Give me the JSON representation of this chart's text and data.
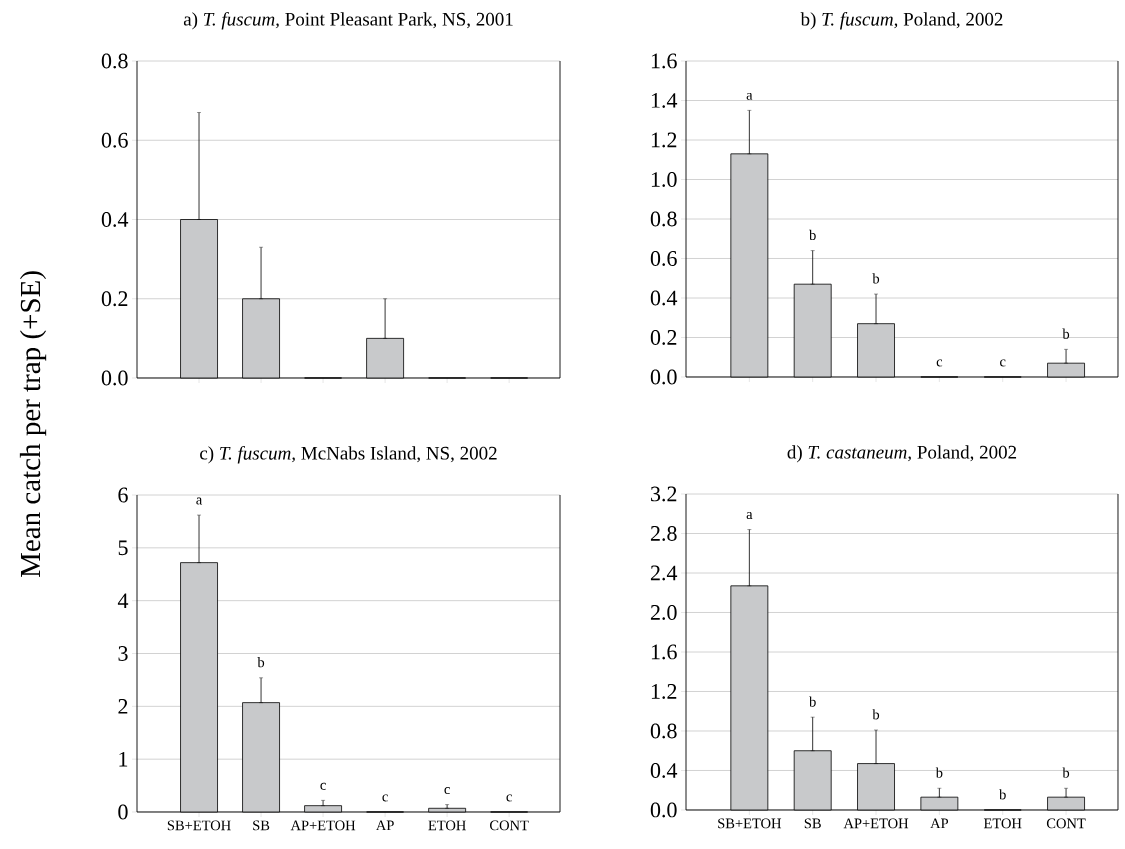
{
  "chart_data": [
    {
      "type": "bar",
      "title": "a)  *T. fuscum,*   Point Pleasant Park, NS, 2001",
      "ylabel": "Mean catch per trap (+SE)",
      "categories": [
        null,
        null,
        null,
        null,
        null,
        null
      ],
      "values": [
        0.4,
        0.2,
        0,
        0.1,
        0,
        0
      ],
      "errors": [
        [
          0.4,
          0.67
        ],
        [
          0.2,
          0.33
        ],
        null,
        [
          0.1,
          0.2
        ],
        null,
        null
      ],
      "color": "#c8c9cb",
      "ylim": [
        0,
        0.8
      ],
      "yticks": [
        {
          "value": 0,
          "label": "0.0"
        },
        0.2,
        0.4,
        0.6,
        0.8
      ],
      "grid": "y",
      "tick_labels": "y"
    },
    {
      "type": "bar",
      "title": "b)  *T. fuscum,*   Poland, 2002",
      "categories": [
        null,
        null,
        null,
        null,
        null,
        null
      ],
      "values": [
        1.13,
        0.47,
        0.27,
        0,
        0,
        0.07
      ],
      "errors": [
        [
          1.13,
          1.35
        ],
        [
          0.47,
          0.64
        ],
        [
          0.27,
          0.42
        ],
        null,
        null,
        [
          0.07,
          0.14
        ]
      ],
      "color": "#c8c9cb",
      "ylim": [
        0,
        1.6
      ],
      "yticks": [
        {
          "value": 0,
          "label": "0.0"
        },
        0.2,
        0.4,
        0.6,
        0.8,
        {
          "value": 1,
          "label": "1.0"
        },
        1.2,
        1.4,
        1.6
      ],
      "grid": "y",
      "tick_labels": "y",
      "annotations": [
        "a",
        "b",
        "b",
        "c",
        "c",
        "b"
      ]
    },
    {
      "type": "bar",
      "title": "c)  *T. fuscum,*   McNabs Island, NS, 2002",
      "categories": [
        "SB+ETOH",
        "SB",
        "AP+ETOH",
        "AP",
        "ETOH",
        "CONT"
      ],
      "values": [
        4.72,
        2.07,
        0.12,
        0,
        0.07,
        0
      ],
      "errors": [
        [
          4.72,
          5.62
        ],
        [
          2.07,
          2.54
        ],
        [
          0.12,
          0.22
        ],
        null,
        [
          0.07,
          0.14
        ],
        null
      ],
      "color": "#c8c9cb",
      "ylim": [
        0,
        6
      ],
      "yticks": [
        0,
        1,
        2,
        3,
        4,
        5,
        6
      ],
      "grid": "y",
      "annotations": [
        "a",
        "b",
        "c",
        "c",
        "c",
        "c"
      ]
    },
    {
      "type": "bar",
      "title": "d)  *T. castaneum,*   Poland, 2002",
      "categories": [
        "SB+ETOH",
        "SB",
        "AP+ETOH",
        "AP",
        "ETOH",
        "CONT"
      ],
      "values": [
        2.27,
        0.6,
        0.47,
        0.13,
        0,
        0.13
      ],
      "errors": [
        [
          2.27,
          2.84
        ],
        [
          0.6,
          0.94
        ],
        [
          0.47,
          0.81
        ],
        [
          0.13,
          0.22
        ],
        null,
        [
          0.13,
          0.22
        ]
      ],
      "color": "#c8c9cb",
      "ylim": [
        0,
        3.2
      ],
      "yticks": [
        {
          "value": 0,
          "label": "0.0"
        },
        0.4,
        0.8,
        1.2,
        1.6,
        {
          "value": 2,
          "label": "2.0"
        },
        2.4,
        2.8,
        3.2
      ],
      "grid": "y",
      "annotations": [
        "a",
        "b",
        "b",
        "b",
        "b",
        "b"
      ]
    }
  ]
}
